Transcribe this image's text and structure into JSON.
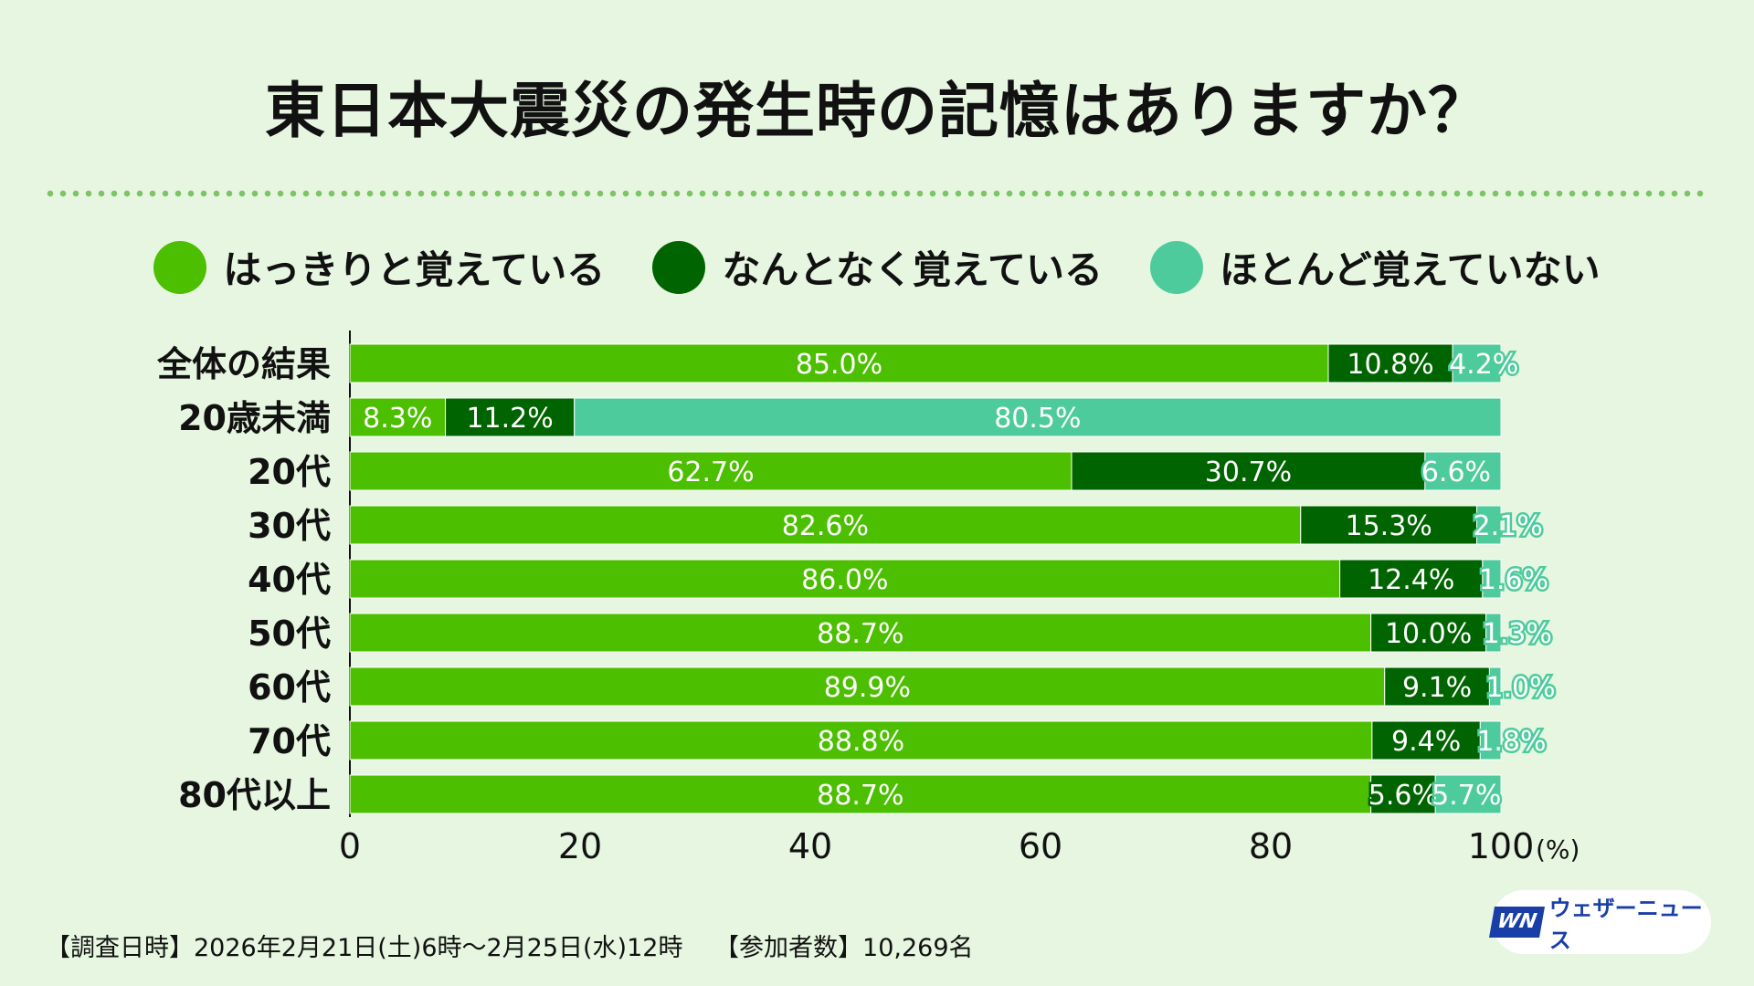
{
  "title": "東日本大震災の発生時の記憶はありますか？",
  "legend": [
    {
      "label": "はっきりと覚えている",
      "color": "#4cbf00"
    },
    {
      "label": "なんとなく覚えている",
      "color": "#006400"
    },
    {
      "label": "ほとんど覚えていない",
      "color": "#4ecb9d"
    }
  ],
  "chart_data": {
    "type": "bar",
    "orientation": "horizontal",
    "stacked": true,
    "categories": [
      "全体の結果",
      "20歳未満",
      "20代",
      "30代",
      "40代",
      "50代",
      "60代",
      "70代",
      "80代以上"
    ],
    "series": [
      {
        "name": "はっきりと覚えている",
        "color": "#4cbf00",
        "values": [
          85.0,
          8.3,
          62.7,
          82.6,
          86.0,
          88.7,
          89.9,
          88.8,
          88.7
        ]
      },
      {
        "name": "なんとなく覚えている",
        "color": "#006400",
        "values": [
          10.8,
          11.2,
          30.7,
          15.3,
          12.4,
          10.0,
          9.1,
          9.4,
          5.6
        ]
      },
      {
        "name": "ほとんど覚えていない",
        "color": "#4ecb9d",
        "values": [
          4.2,
          80.5,
          6.6,
          2.1,
          1.6,
          1.3,
          1.0,
          1.8,
          5.7
        ]
      }
    ],
    "xticks": [
      "0",
      "20",
      "40",
      "60",
      "80",
      "100"
    ],
    "xunit": "(%)",
    "xlim": [
      0,
      100
    ]
  },
  "footer": {
    "survey_date": "【調査日時】2026年2月21日(土)6時〜2月25日(水)12時",
    "participants": "【参加者数】10,269名"
  },
  "logo": {
    "mark": "WN",
    "text": "ウェザーニュース"
  }
}
